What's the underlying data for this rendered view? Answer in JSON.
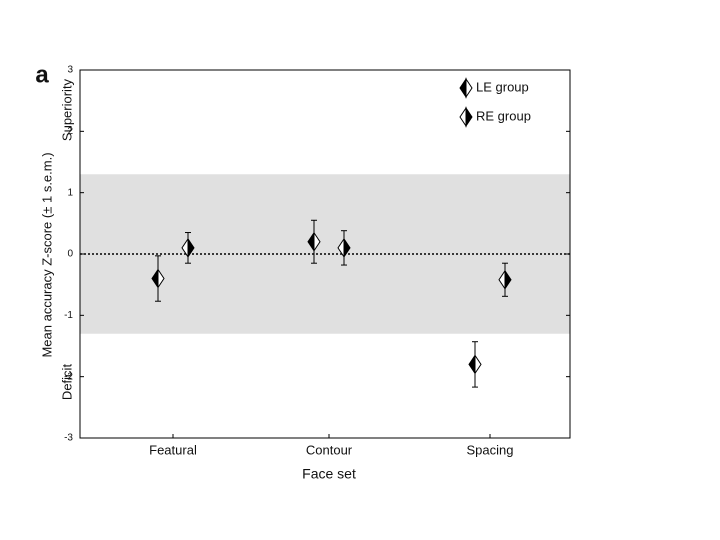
{
  "chart_data": {
    "type": "errorpoint",
    "panel_label": "a",
    "y_label": "Mean accuracy Z-score (± 1 s.e.m.)",
    "y_label_top": "Superiority",
    "y_label_bottom": "Deficit",
    "x_label": "Face set",
    "categories": [
      "Featural",
      "Contour",
      "Spacing"
    ],
    "series": [
      {
        "name": "LE group",
        "color": "#000000",
        "values": [
          -0.4,
          0.2,
          -1.8
        ],
        "errors": [
          0.37,
          0.35,
          0.37
        ]
      },
      {
        "name": "RE group",
        "color": "#000000",
        "values": [
          0.1,
          0.1,
          -0.42
        ],
        "errors": [
          0.25,
          0.28,
          0.27
        ]
      }
    ],
    "ylim": [
      -3,
      3
    ],
    "yticks": [
      -3,
      -2,
      -1,
      0,
      1,
      2,
      3
    ],
    "shaded_band": [
      -1.3,
      1.3
    ],
    "band_color": "#e0e0e0",
    "reference_line": 0
  }
}
